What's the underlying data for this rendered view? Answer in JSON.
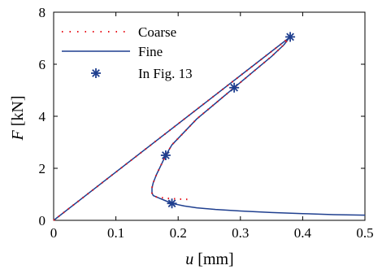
{
  "chart_data": {
    "type": "line",
    "xlabel": {
      "italic": "u",
      "rest": " [mm]"
    },
    "ylabel": {
      "italic": "F",
      "rest": " [kN]"
    },
    "xlim": [
      0,
      0.5
    ],
    "ylim": [
      0,
      8
    ],
    "xticks": [
      "0",
      "0.1",
      "0.2",
      "0.3",
      "0.4",
      "0.5"
    ],
    "xtick_values": [
      0,
      0.1,
      0.2,
      0.3,
      0.4,
      0.5
    ],
    "yticks": [
      "0",
      "2",
      "4",
      "6",
      "8"
    ],
    "ytick_values": [
      0,
      2,
      4,
      6,
      8
    ],
    "grid": false,
    "legend_position": "top-left",
    "series": [
      {
        "name": "Coarse",
        "style": "dotted",
        "color": "#e8141c",
        "x": [
          0,
          0.38,
          0.378,
          0.37,
          0.35,
          0.32,
          0.29,
          0.26,
          0.23,
          0.21,
          0.19,
          0.18,
          0.172,
          0.165,
          0.16,
          0.158,
          0.158,
          0.16,
          0.165,
          0.17,
          0.18,
          0.2,
          0.22
        ],
        "y": [
          0,
          7.05,
          7.0,
          6.75,
          6.3,
          5.7,
          5.1,
          4.5,
          3.9,
          3.4,
          2.9,
          2.5,
          2.1,
          1.75,
          1.45,
          1.25,
          1.05,
          0.95,
          0.9,
          0.88,
          0.85,
          0.82,
          0.8
        ]
      },
      {
        "name": "Fine",
        "style": "solid",
        "color": "#1f3f8f",
        "x": [
          0,
          0.38,
          0.378,
          0.37,
          0.35,
          0.32,
          0.29,
          0.26,
          0.23,
          0.21,
          0.19,
          0.18,
          0.172,
          0.165,
          0.16,
          0.158,
          0.158,
          0.16,
          0.165,
          0.17,
          0.18,
          0.19,
          0.21,
          0.23,
          0.26,
          0.3,
          0.35,
          0.4,
          0.45,
          0.5
        ],
        "y": [
          0,
          7.05,
          7.0,
          6.75,
          6.3,
          5.7,
          5.1,
          4.5,
          3.9,
          3.4,
          2.9,
          2.5,
          2.1,
          1.75,
          1.45,
          1.25,
          1.05,
          0.95,
          0.9,
          0.85,
          0.75,
          0.65,
          0.55,
          0.48,
          0.42,
          0.36,
          0.3,
          0.26,
          0.22,
          0.2
        ]
      },
      {
        "name": "In Fig. 13",
        "style": "markers",
        "marker": "asterisk",
        "color": "#1f3f8f",
        "x": [
          0.38,
          0.29,
          0.18,
          0.19
        ],
        "y": [
          7.05,
          5.1,
          2.5,
          0.65
        ]
      }
    ]
  }
}
